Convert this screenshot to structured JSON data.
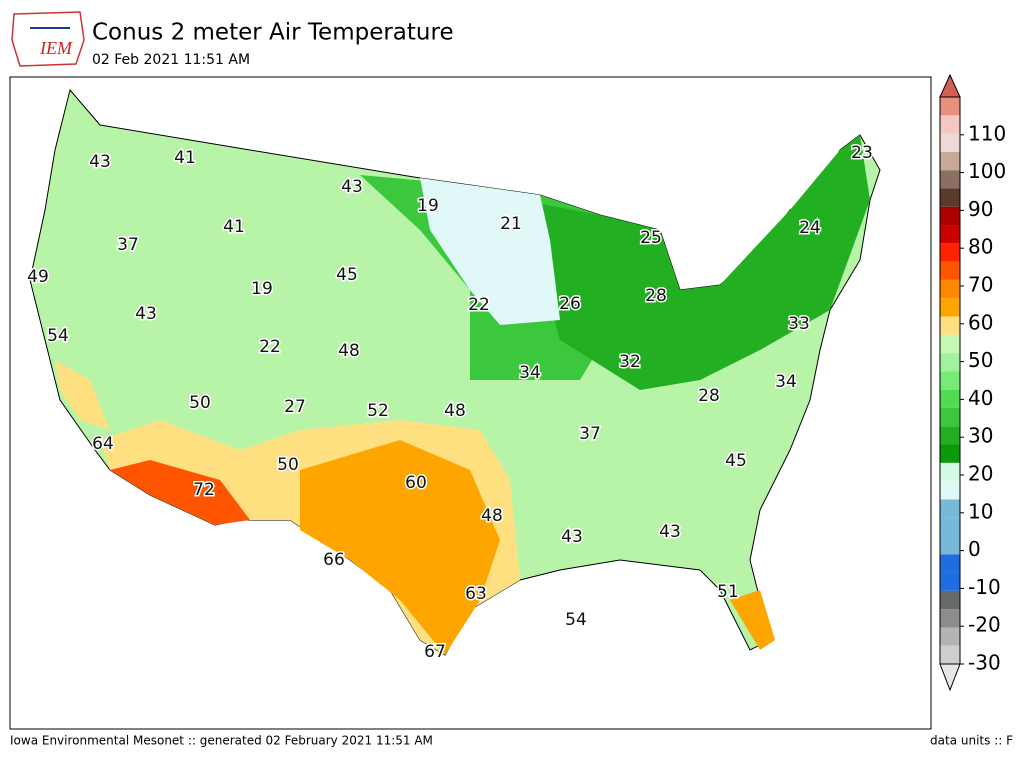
{
  "header": {
    "logo": "IEM",
    "title": "Conus 2 meter Air Temperature",
    "subtitle": "02 Feb 2021 11:51 AM"
  },
  "map": {
    "labels": [
      43,
      41,
      43,
      19,
      21,
      23,
      37,
      41,
      45,
      25,
      24,
      49,
      19,
      22,
      26,
      28,
      43,
      22,
      48,
      33,
      54,
      32,
      34,
      34,
      50,
      27,
      52,
      48,
      28,
      37,
      64,
      45,
      50,
      60,
      72,
      48,
      43,
      43,
      66,
      63,
      51,
      54,
      67
    ]
  },
  "colorbar": {
    "range": [
      -30,
      120
    ],
    "ticks": [
      -30,
      -20,
      -10,
      0,
      10,
      20,
      30,
      40,
      50,
      60,
      70,
      80,
      90,
      100,
      110
    ],
    "colors": [
      "#e6e6e6",
      "#cfcfcf",
      "#b4b4b4",
      "#8c8c8c",
      "#666a66",
      "#1e6ee0",
      "#1e6ee0",
      "#78b8d8",
      "#78b8d8",
      "#78b8d8",
      "#e0f8f8",
      "#d6fbe4",
      "#0a9a0a",
      "#22b022",
      "#3cc83c",
      "#50dc50",
      "#78ea78",
      "#a0f2a0",
      "#c4f8b4",
      "#ffe080",
      "#ffa500",
      "#ff8800",
      "#ff5500",
      "#ff2200",
      "#cc0000",
      "#aa0000",
      "#5a3a2a",
      "#8a7060",
      "#c8a898",
      "#f0d8d8",
      "#f4c8c0",
      "#e89080",
      "#d06050"
    ]
  },
  "footer": {
    "left": "Iowa Environmental Mesonet :: generated 02 February 2021 11:51 AM",
    "right": "data units :: F"
  }
}
